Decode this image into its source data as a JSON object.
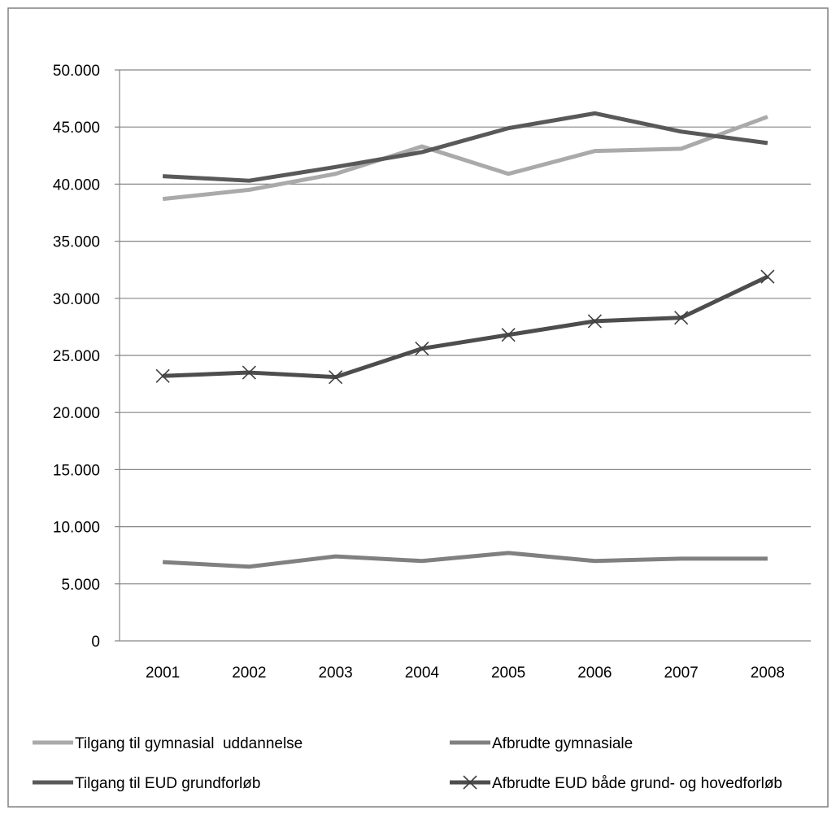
{
  "chart_data": {
    "type": "line",
    "title": "",
    "xlabel": "",
    "ylabel": "",
    "categories": [
      "2001",
      "2002",
      "2003",
      "2004",
      "2005",
      "2006",
      "2007",
      "2008"
    ],
    "ylim": [
      0,
      50000
    ],
    "yticks": [
      0,
      5000,
      10000,
      15000,
      20000,
      25000,
      30000,
      35000,
      40000,
      45000,
      50000
    ],
    "ytick_labels": [
      "0",
      "5.000",
      "10.000",
      "15.000",
      "20.000",
      "25.000",
      "30.000",
      "35.000",
      "40.000",
      "45.000",
      "50.000"
    ],
    "grid": true,
    "legend_position": "bottom",
    "series": [
      {
        "name": "Tilgang til gymnasial  uddannelse",
        "values": [
          38700,
          39500,
          40900,
          43300,
          40900,
          42900,
          43100,
          45900
        ],
        "color": "#aaaaaa",
        "marker": "none"
      },
      {
        "name": "Afbrudte gymnasiale",
        "values": [
          6900,
          6500,
          7400,
          7000,
          7700,
          7000,
          7200,
          7200
        ],
        "color": "#808080",
        "marker": "none"
      },
      {
        "name": "Tilgang til EUD grundforløb",
        "values": [
          40700,
          40300,
          41500,
          42800,
          44900,
          46200,
          44600,
          43600
        ],
        "color": "#595959",
        "marker": "none"
      },
      {
        "name": "Afbrudte EUD både grund- og hovedforløb",
        "values": [
          23200,
          23500,
          23100,
          25600,
          26800,
          28000,
          28300,
          31900
        ],
        "color": "#4d4d4d",
        "marker": "x"
      }
    ]
  }
}
